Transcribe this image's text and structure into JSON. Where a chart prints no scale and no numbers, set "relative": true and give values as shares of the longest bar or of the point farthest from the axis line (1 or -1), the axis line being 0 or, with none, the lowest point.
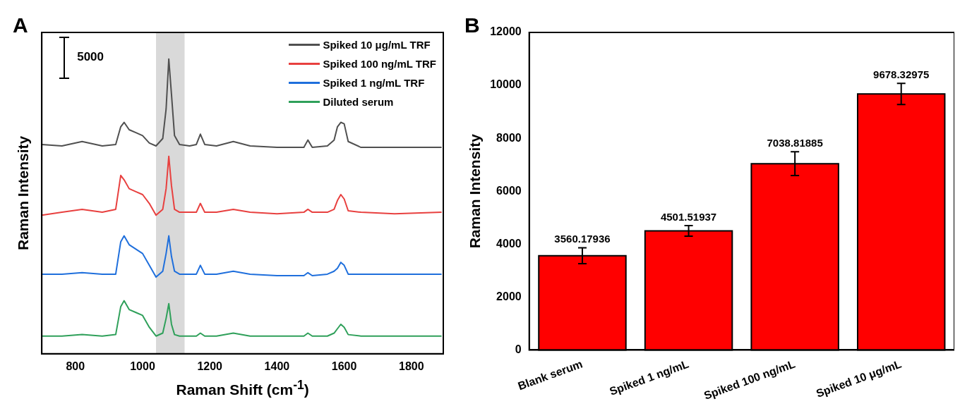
{
  "chart_data": [
    {
      "type": "line",
      "relative": true,
      "xlabel": "Raman Shift (cm$^{-1}$)",
      "ylabel": "Raman Intensity",
      "annotations": [
        "A",
        "5000"
      ],
      "legend": "top right",
      "x": [
        700,
        760,
        820,
        880,
        920,
        935,
        945,
        960,
        980,
        1000,
        1020,
        1040,
        1060,
        1070,
        1078,
        1086,
        1095,
        1110,
        1140,
        1160,
        1172,
        1185,
        1220,
        1270,
        1320,
        1400,
        1480,
        1492,
        1505,
        1550,
        1570,
        1580,
        1590,
        1600,
        1612,
        1650,
        1750,
        1890
      ],
      "xlim": [
        700,
        1895
      ],
      "xticks": [
        800,
        1000,
        1200,
        1400,
        1600,
        1800
      ],
      "bands": [
        {
          "axis": "x",
          "from": 1040,
          "to": 1125,
          "color": "#d9d9d9"
        }
      ],
      "series": [
        {
          "name": "Spiked 10 μg/mL TRF",
          "color": "#505050",
          "values": [
            0.71,
            0.705,
            0.72,
            0.705,
            0.71,
            0.77,
            0.785,
            0.76,
            0.75,
            0.74,
            0.715,
            0.705,
            0.73,
            0.83,
            1.0,
            0.88,
            0.74,
            0.71,
            0.705,
            0.71,
            0.745,
            0.71,
            0.705,
            0.72,
            0.705,
            0.7,
            0.7,
            0.725,
            0.7,
            0.705,
            0.725,
            0.77,
            0.785,
            0.78,
            0.72,
            0.7,
            0.7,
            0.7
          ]
        },
        {
          "name": "Spiked 100 ng/mL TRF",
          "color": "#e8403f",
          "values": [
            0.47,
            0.48,
            0.49,
            0.48,
            0.49,
            0.605,
            0.59,
            0.56,
            0.55,
            0.54,
            0.51,
            0.47,
            0.49,
            0.56,
            0.67,
            0.57,
            0.49,
            0.48,
            0.48,
            0.48,
            0.51,
            0.48,
            0.48,
            0.49,
            0.48,
            0.475,
            0.48,
            0.49,
            0.48,
            0.48,
            0.49,
            0.52,
            0.54,
            0.525,
            0.485,
            0.48,
            0.475,
            0.48
          ]
        },
        {
          "name": "Spiked 1 ng/mL TRF",
          "color": "#1f6fdc",
          "values": [
            0.27,
            0.27,
            0.275,
            0.27,
            0.27,
            0.38,
            0.4,
            0.37,
            0.355,
            0.34,
            0.3,
            0.26,
            0.28,
            0.34,
            0.4,
            0.33,
            0.28,
            0.27,
            0.27,
            0.27,
            0.3,
            0.27,
            0.27,
            0.28,
            0.27,
            0.265,
            0.265,
            0.275,
            0.265,
            0.27,
            0.28,
            0.29,
            0.31,
            0.3,
            0.27,
            0.27,
            0.27,
            0.27
          ]
        },
        {
          "name": "Diluted serum",
          "color": "#2fa05a",
          "values": [
            0.06,
            0.06,
            0.065,
            0.06,
            0.065,
            0.16,
            0.18,
            0.15,
            0.14,
            0.13,
            0.09,
            0.06,
            0.07,
            0.12,
            0.17,
            0.1,
            0.065,
            0.06,
            0.06,
            0.06,
            0.07,
            0.06,
            0.06,
            0.07,
            0.06,
            0.06,
            0.06,
            0.07,
            0.06,
            0.06,
            0.07,
            0.085,
            0.1,
            0.09,
            0.065,
            0.06,
            0.06,
            0.06
          ]
        }
      ]
    },
    {
      "type": "bar",
      "ylabel": "Raman Intensity",
      "annotations": [
        "B"
      ],
      "categories": [
        "Blank serum",
        "Spiked 1 ng/mL",
        "Spiked 100 ng/mL",
        "Spiked 10 μg/mL"
      ],
      "values": [
        3560.17936,
        4501.51937,
        7038.81885,
        9678.32975
      ],
      "errors": [
        300,
        200,
        450,
        400
      ],
      "color": "#ff0000",
      "data_labels": true,
      "ylim": [
        0,
        12000
      ],
      "yticks": [
        0,
        2000,
        4000,
        6000,
        8000,
        10000,
        12000
      ]
    }
  ]
}
